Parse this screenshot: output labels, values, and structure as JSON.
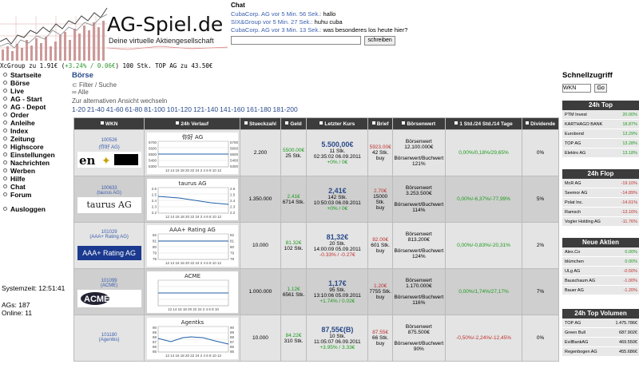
{
  "header": {
    "logo_title": "AG-Spiel.de",
    "logo_subtitle": "Deine virtuelle Aktiengesellschaft",
    "ticker_prefix": "XcGroup zu 1.91€ (",
    "ticker_change": "+3.24% / 0.06€",
    "ticker_suffix": ")   100 Stk. TOP AG zu 43.50€"
  },
  "chat": {
    "title": "Chat",
    "messages": [
      {
        "user": "CubaCorp. AG vor 5 Min. 56 Sek.:",
        "text": "hallo"
      },
      {
        "user": "SIX&Group vor 5 Min. 27 Sek.:",
        "text": "huhu cuba"
      },
      {
        "user": "CubaCorp. AG vor 3 Min. 13 Sek.:",
        "text": "was besonderes los heute hier?"
      }
    ],
    "input_value": "",
    "send_label": "schreiben"
  },
  "nav": {
    "items": [
      "Startseite",
      "Börse",
      "Live",
      "AG - Start",
      "AG - Depot",
      "Order",
      "Anleihe",
      "Index",
      "Zeitung",
      "Highscore",
      "Einstellungen",
      "Nachrichten",
      "Werben",
      "Hilfe",
      "Chat",
      "Forum"
    ],
    "logout": "Ausloggen",
    "systemzeit": "Systemzeit: 12:51:41",
    "ags": "AGs: 187",
    "online": "Online: 11"
  },
  "main": {
    "title": "Börse",
    "filter_label": "Filter / Suche",
    "filter_all": "Alle",
    "alt_view": "Zur alternativen Ansicht wechseln",
    "pages": [
      "1-20",
      "21-40",
      "41-60",
      "61-80",
      "81-100",
      "101-120",
      "121-140",
      "141-160",
      "161-180",
      "181-200"
    ]
  },
  "table": {
    "headers": [
      "WKN",
      "24h Verlauf",
      "Stueckzahl",
      "Geld",
      "Letzter Kurs",
      "Brief",
      "Börsenwert",
      "1 Std./24 Std./14 Tage",
      "Dividende"
    ],
    "rows": [
      {
        "wkn": "100526",
        "name": "(你好 AG)",
        "logo_text": "",
        "chart_title": "你好 AG",
        "chart_ticks": [
          "5700",
          "5600",
          "5500",
          "5400",
          "5300"
        ],
        "chart_x": "12 14 16 18 20 22 24 2 4 6 8 10 12",
        "stueck": "2.200",
        "geld": "5500.00€",
        "geld_stk": "25 Stk.",
        "kurs": "5.500,00€",
        "kurs_stk": "11 Stk.",
        "kurs_zeit": "02:35:02 06.09.2011",
        "kurs_change": "+0% / 0€",
        "brief": "5923.00€",
        "brief_stk": "42 Stk.",
        "brief_action": "buy",
        "bw_label": "Börsenwert",
        "bw_value": "12.100.000€",
        "bw_sub": "Börsenwert/Buchwert",
        "bw_pct": "121%",
        "perf": "0,00%/0,18%/29,65%",
        "div": "0%"
      },
      {
        "wkn": "100633",
        "name": "(taurus AG)",
        "logo_text": "taurus AG",
        "chart_title": "taurus AG",
        "chart_ticks": [
          "2.6",
          "2.5",
          "2.4",
          "2.3",
          "2.2"
        ],
        "chart_x": "12 14 16 18 20 22 24 2 4 6 8 10 12",
        "stueck": "1.350.000",
        "geld": "2.41€",
        "geld_stk": "6714 Stk.",
        "kurs": "2,41€",
        "kurs_stk": "142 Stk.",
        "kurs_zeit": "10:50:03 06.09.2011",
        "kurs_change": "+0% / 0€",
        "brief": "2.70€",
        "brief_stk": "15000 Stk.",
        "brief_action": "buy",
        "bw_label": "Börsenwert",
        "bw_value": "3.253.500€",
        "bw_sub": "Börsenwert/Buchwert",
        "bw_pct": "114%",
        "perf": "0,00%/-6,37%/-77,99%",
        "div": "5%"
      },
      {
        "wkn": "101029",
        "name": "(AAA+ Rating AG)",
        "logo_text": "AAA+ Rating AG",
        "chart_title": "AAA+ Rating AG",
        "chart_ticks": [
          "82",
          "81",
          "80",
          "79",
          "78"
        ],
        "chart_x": "12 14 16 18 20 22 24 2 4 6 8 10 12",
        "stueck": "10.000",
        "geld": "81.32€",
        "geld_stk": "102 Stk.",
        "kurs": "81,32€",
        "kurs_stk": "20 Stk.",
        "kurs_zeit": "14:00:09 05.09.2011",
        "kurs_change": "-0.33% / -0.27€",
        "brief": "82.00€",
        "brief_stk": "601 Stk.",
        "brief_action": "buy",
        "bw_label": "Börsenwert",
        "bw_value": "813.200€",
        "bw_sub": "Börsenwert/Buchwert",
        "bw_pct": "124%",
        "perf": "0,00%/-0,83%/-20,31%",
        "div": "2%"
      },
      {
        "wkn": "101099",
        "name": "(ACME)",
        "logo_text": "ACME",
        "chart_title": "ACME",
        "chart_ticks": [],
        "chart_x": "12 14 16 18 20 22 24 2 4 6 8 10",
        "stueck": "1.000.000",
        "geld": "1.12€",
        "geld_stk": "6561 Stk.",
        "kurs": "1,17€",
        "kurs_stk": "95 Stk.",
        "kurs_zeit": "13:10:06 05.09.2011",
        "kurs_change": "+1.74% / 0.02€",
        "brief": "1.20€",
        "brief_stk": "7755 Stk.",
        "brief_action": "buy",
        "bw_label": "Börsenwert",
        "bw_value": "1.170.000€",
        "bw_sub": "Börsenwert/Buchwert",
        "bw_pct": "116%",
        "perf": "0,00%/1,74%/27,17%",
        "div": "7%"
      },
      {
        "wkn": "101180",
        "name": "(Agentks)",
        "logo_text": "",
        "chart_title": "Agentks",
        "chart_ticks": [
          "90",
          "89",
          "88",
          "87",
          "86",
          "85"
        ],
        "chart_x": "12 14 16 18 20 22 24 2 4 6 8 10 12",
        "stueck": "10.000",
        "geld": "84.22€",
        "geld_stk": "310 Stk.",
        "kurs": "87,55€(B)",
        "kurs_stk": "10 Stk.",
        "kurs_zeit": "11:05:07 06.09.2011",
        "kurs_change": "+3.95% / 3.33€",
        "brief": "87.55€",
        "brief_stk": "66 Stk.",
        "brief_action": "buy",
        "bw_label": "Börsenwert",
        "bw_value": "875.500€",
        "bw_sub": "Börsenwert/Buchwert",
        "bw_pct": "90%",
        "perf": "-0,50%/-2,24%/-12,45%",
        "div": "0%"
      }
    ]
  },
  "right": {
    "schnell_title": "Schnellzugriff",
    "schnell_value": "WKN",
    "schnell_go": "Go",
    "top": {
      "title": "24h Top",
      "rows": [
        {
          "name": "PTM Invest",
          "value": "20.00%"
        },
        {
          "name": "KARTHAGO BANK",
          "value": "18.87%"
        },
        {
          "name": "Eurobond",
          "value": "13.29%"
        },
        {
          "name": "TOP AG",
          "value": "13.28%"
        },
        {
          "name": "Elektro AG",
          "value": "13.18%"
        }
      ]
    },
    "flop": {
      "title": "24h Flop",
      "rows": [
        {
          "name": "McR AG",
          "value": "-19.10%"
        },
        {
          "name": "Seemor AG",
          "value": "-14.89%"
        },
        {
          "name": "Polat Inc.",
          "value": "-14.61%"
        },
        {
          "name": "Ramsch",
          "value": "-13.16%"
        },
        {
          "name": "Vogler Holding AG",
          "value": "-11.76%"
        }
      ]
    },
    "neu": {
      "title": "Neue Aktien",
      "rows": [
        {
          "name": "Alex.Co",
          "value": "0.00%"
        },
        {
          "name": "blümchen",
          "value": "0.00%"
        },
        {
          "name": "ULg AG",
          "value": "-0.50%"
        },
        {
          "name": "Bauschaum AG",
          "value": "-1.00%"
        },
        {
          "name": "Bauer AG",
          "value": "-1.20%"
        }
      ]
    },
    "vol": {
      "title": "24h Top Volumen",
      "rows": [
        {
          "name": "TOP AG",
          "value": "1.475.786€"
        },
        {
          "name": "Green Bull",
          "value": "687.902€"
        },
        {
          "name": "EvilBankAG",
          "value": "469.550€"
        },
        {
          "name": "Regenbogen AG",
          "value": "455.686€"
        }
      ]
    }
  },
  "colors": {
    "header_dark": "#3c3c3c",
    "accent_blue": "#2a4a8a",
    "positive": "#1e9a1e",
    "negative": "#c03030"
  }
}
